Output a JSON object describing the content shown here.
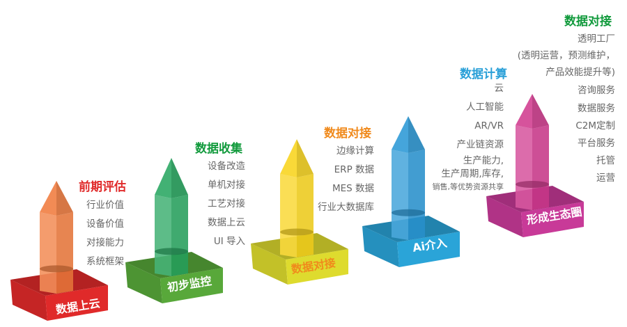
{
  "steps": [
    {
      "title": "前期评估",
      "title_color": "#e02a2a",
      "base_label": "数据上云",
      "label_color": "#ffffff",
      "base_color": "#e02a2a",
      "pillar_color": "#f07a3c",
      "items": [
        "行业价值",
        "设备价值",
        "对接能力",
        "系统框架"
      ]
    },
    {
      "title": "数据收集",
      "title_color": "#119a3c",
      "base_label": "初步监控",
      "label_color": "#ffffff",
      "base_color": "#58a83a",
      "pillar_color": "#27a660",
      "items": [
        "设备改造",
        "单机对接",
        "工艺对接",
        "数据上云",
        "UI 导入"
      ]
    },
    {
      "title": "数据对接",
      "title_color": "#f08a1c",
      "base_label": "数据对接",
      "label_color": "#f08a1c",
      "base_color": "#dedb2e",
      "pillar_color": "#f8d41c",
      "items": [
        "边缘计算",
        "ERP 数据",
        "MES 数据",
        "行业大数据库"
      ]
    },
    {
      "title": "数据计算",
      "title_color": "#2aa0d8",
      "base_label": "Ai介入",
      "label_color": "#ffffff",
      "base_color": "#2aa4d8",
      "pillar_color": "#2a98d6",
      "items": [
        "云",
        "人工智能",
        "AR/VR",
        "产业链资源",
        "生产能力,",
        "生产周期,库存,",
        "销售,等优势资源共享"
      ]
    },
    {
      "title": "数据对接",
      "title_color": "#119a3c",
      "base_label": "形成生态圈",
      "label_color": "#ffffff",
      "base_color": "#c83a98",
      "pillar_color": "#d03a8e",
      "items": [
        "透明工厂",
        "(透明运营，预测维护，",
        "产品效能提升等)",
        "咨询服务",
        "数据服务",
        "C2M定制",
        "平台服务",
        "托管",
        "运营"
      ]
    }
  ]
}
